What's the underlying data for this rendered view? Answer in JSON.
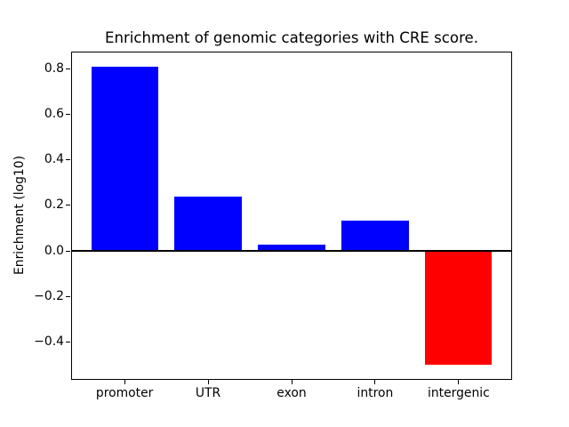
{
  "chart_data": {
    "type": "bar",
    "title": "Enrichment of genomic categories with CRE score.",
    "ylabel": "Enrichment (log10)",
    "xlabel": "",
    "categories": [
      "promoter",
      "UTR",
      "exon",
      "intron",
      "intergenic"
    ],
    "values": [
      0.81,
      0.24,
      0.03,
      0.135,
      -0.5
    ],
    "bar_colors": [
      "#0000ff",
      "#0000ff",
      "#0000ff",
      "#0000ff",
      "#ff0000"
    ],
    "positive_color": "#0000ff",
    "negative_color": "#ff0000",
    "yticks": [
      -0.4,
      -0.2,
      0.0,
      0.2,
      0.4,
      0.6,
      0.8
    ],
    "ytick_labels": [
      "−0.4",
      "−0.2",
      "0.0",
      "0.2",
      "0.4",
      "0.6",
      "0.8"
    ],
    "ylim": [
      -0.5655,
      0.8755
    ],
    "xlim": [
      -0.64,
      4.64
    ],
    "bar_width": 0.8,
    "zero_line": {
      "y": 0.0,
      "color": "#000000",
      "linewidth": 2
    },
    "grid": false,
    "background": "#ffffff",
    "axis_color": "#000000"
  }
}
